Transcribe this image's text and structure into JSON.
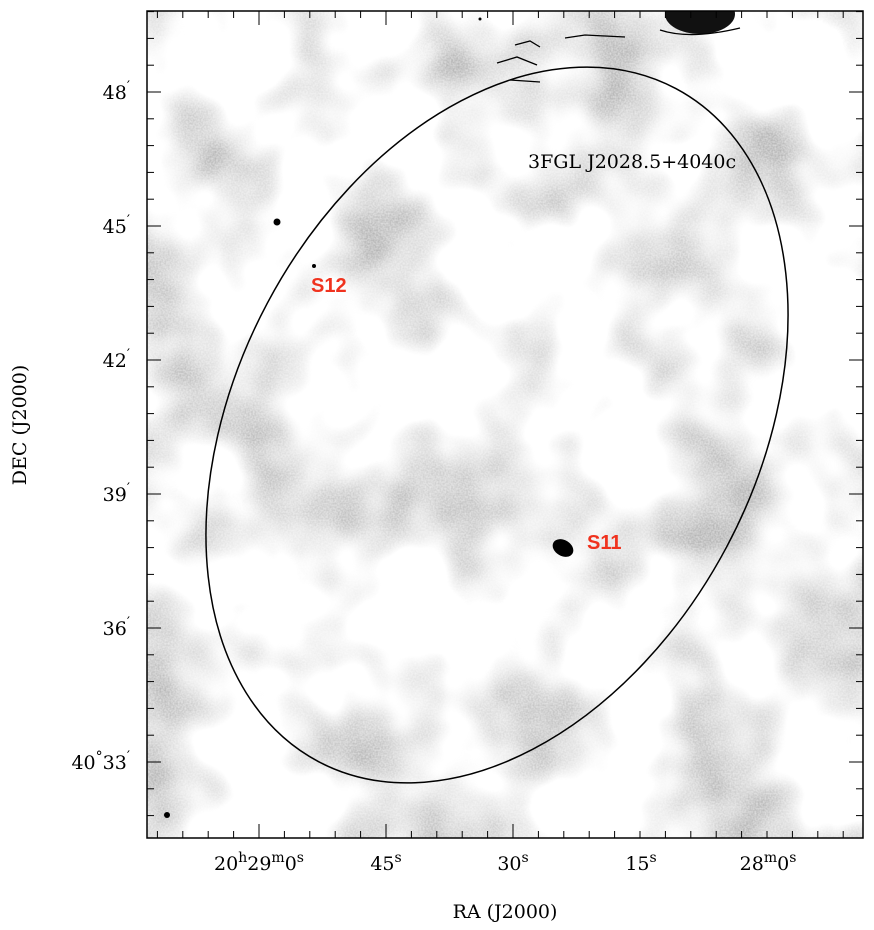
{
  "figure": {
    "x_axis_label": "RA (J2000)",
    "y_axis_label": "DEC (J2000)",
    "x_tick_labels": [
      "20h29m0s",
      "45s",
      "30s",
      "15s",
      "28m0s"
    ],
    "y_tick_labels": [
      "48′",
      "45′",
      "42′",
      "39′",
      "36′",
      "40°33′"
    ],
    "ellipse_label": "3FGL J2028.5+4040c",
    "sources": [
      "S11",
      "S12"
    ]
  }
}
